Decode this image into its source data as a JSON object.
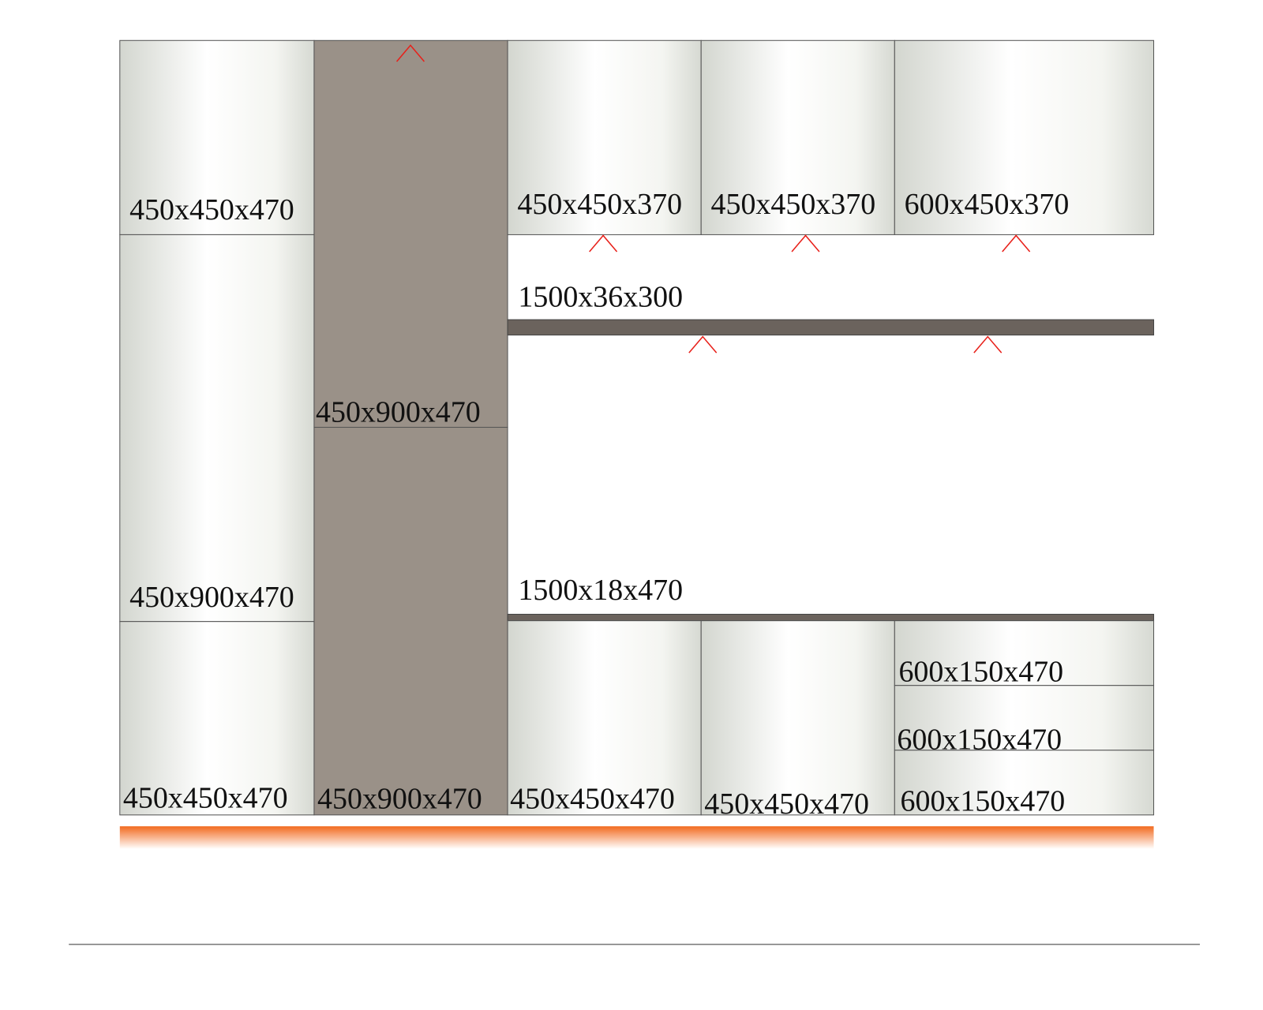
{
  "panels": [
    {
      "label": "450x450x470"
    },
    {
      "label": "450x900x470"
    },
    {
      "label": "450x450x470"
    },
    {
      "label": "450x900x470"
    },
    {
      "label": "450x900x470"
    },
    {
      "label": "450x450x370"
    },
    {
      "label": "450x450x370"
    },
    {
      "label": "600x450x370"
    },
    {
      "label": "1500x36x300"
    },
    {
      "label": "1500x18x470"
    },
    {
      "label": "450x450x470"
    },
    {
      "label": "450x450x470"
    },
    {
      "label": "600x150x470"
    },
    {
      "label": "600x150x470"
    },
    {
      "label": "600x150x470"
    }
  ]
}
